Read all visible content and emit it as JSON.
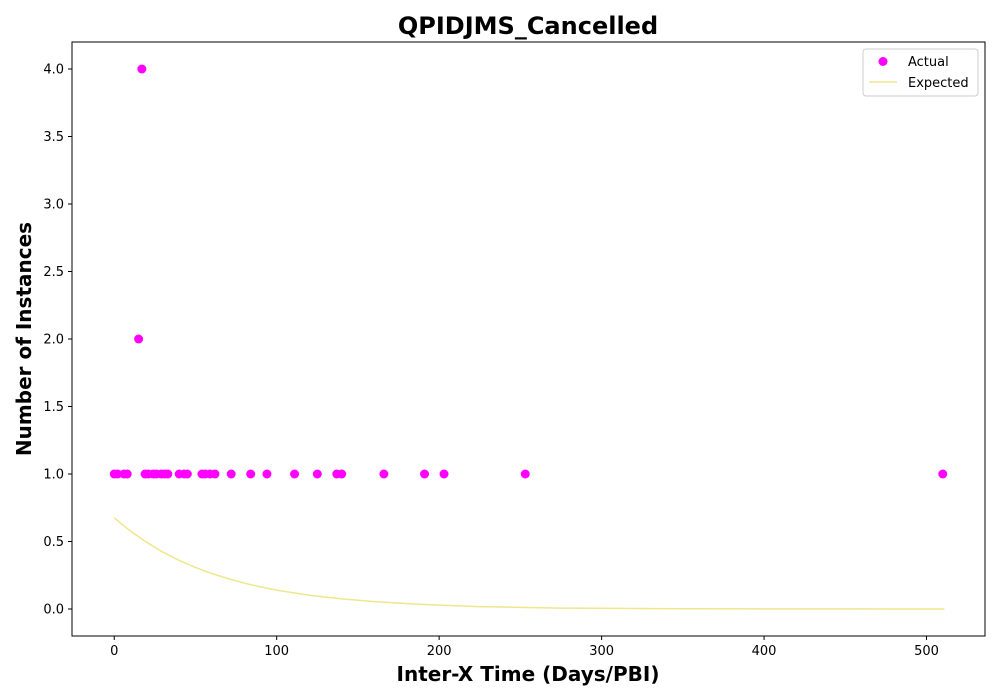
{
  "chart_data": {
    "type": "scatter",
    "title": "QPIDJMS_Cancelled",
    "xlabel": "Inter-X Time (Days/PBI)",
    "ylabel": "Number of Instances",
    "xlim": [
      -26,
      536
    ],
    "ylim": [
      -0.2,
      4.2
    ],
    "xticks": [
      0,
      100,
      200,
      300,
      400,
      500
    ],
    "yticks": [
      0.0,
      0.5,
      1.0,
      1.5,
      2.0,
      2.5,
      3.0,
      3.5,
      4.0
    ],
    "xtick_labels": [
      "0",
      "100",
      "200",
      "300",
      "400",
      "500"
    ],
    "ytick_labels": [
      "0.0",
      "0.5",
      "1.0",
      "1.5",
      "2.0",
      "2.5",
      "3.0",
      "3.5",
      "4.0"
    ],
    "grid": false,
    "legend_position": "top-right",
    "series": [
      {
        "name": "Actual",
        "kind": "scatter",
        "color": "#ff00ff",
        "x": [
          0,
          2,
          6,
          8,
          15,
          17,
          19,
          21,
          24,
          26,
          29,
          31,
          33,
          40,
          43,
          45,
          54,
          56,
          59,
          62,
          72,
          84,
          94,
          111,
          125,
          137,
          140,
          166,
          191,
          203,
          253,
          510
        ],
        "y": [
          1,
          1,
          1,
          1,
          2,
          4,
          1,
          1,
          1,
          1,
          1,
          1,
          1,
          1,
          1,
          1,
          1,
          1,
          1,
          1,
          1,
          1,
          1,
          1,
          1,
          1,
          1,
          1,
          1,
          1,
          1,
          1
        ]
      },
      {
        "name": "Expected",
        "kind": "line",
        "color": "#f0e68c",
        "x": [
          0,
          10,
          20,
          30,
          40,
          50,
          60,
          70,
          80,
          90,
          100,
          120,
          140,
          160,
          180,
          200,
          225,
          250,
          275,
          300,
          350,
          400,
          450,
          511
        ],
        "y": [
          0.675,
          0.577,
          0.493,
          0.421,
          0.36,
          0.308,
          0.263,
          0.225,
          0.192,
          0.164,
          0.14,
          0.102,
          0.075,
          0.055,
          0.04,
          0.029,
          0.018,
          0.012,
          0.007,
          0.005,
          0.002,
          0.001,
          0.0005,
          0.0001
        ]
      }
    ]
  }
}
